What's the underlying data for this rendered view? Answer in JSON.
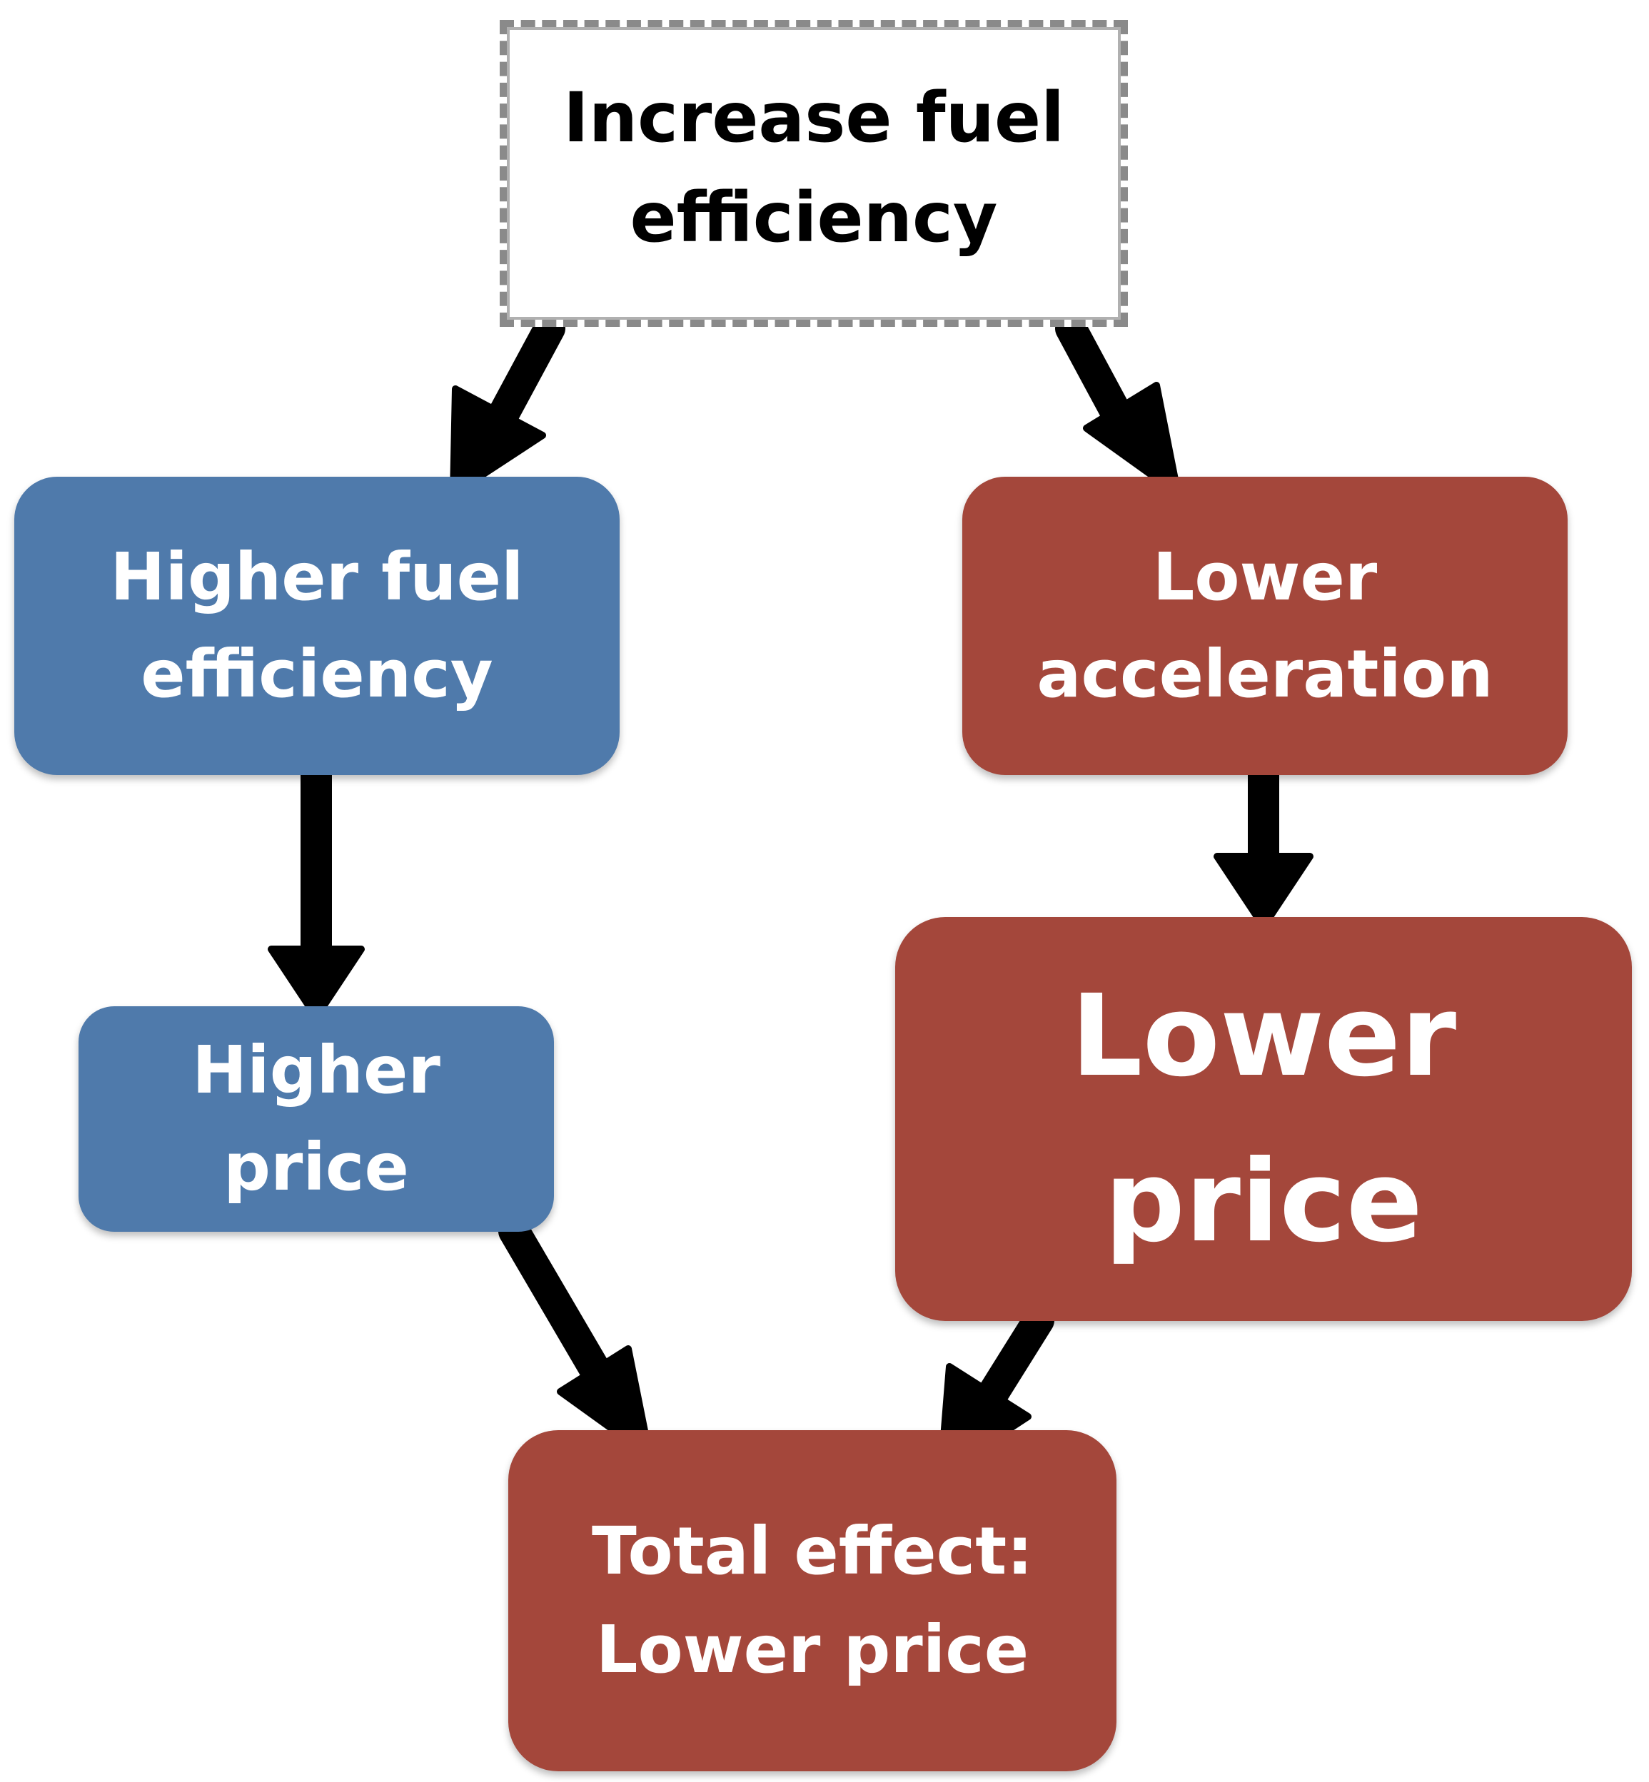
{
  "nodes": {
    "increase_fuel_efficiency": {
      "lines": [
        "Increase fuel",
        "efficiency"
      ]
    },
    "higher_fuel_efficiency": {
      "lines": [
        "Higher fuel",
        "efficiency"
      ]
    },
    "lower_acceleration": {
      "lines": [
        "Lower",
        "acceleration"
      ]
    },
    "higher_price": {
      "lines": [
        "Higher",
        "price"
      ]
    },
    "lower_price": {
      "lines": [
        "Lower",
        "price"
      ]
    },
    "total_effect": {
      "lines": [
        "Total effect:",
        "Lower price"
      ]
    }
  },
  "edges": [
    {
      "from": "Increase fuel efficiency",
      "to": "Higher fuel efficiency"
    },
    {
      "from": "Increase fuel efficiency",
      "to": "Lower acceleration"
    },
    {
      "from": "Higher fuel efficiency",
      "to": "Higher price"
    },
    {
      "from": "Lower acceleration",
      "to": "Lower price"
    },
    {
      "from": "Higher price",
      "to": "Total effect: Lower price"
    },
    {
      "from": "Lower price",
      "to": "Total effect: Lower price"
    }
  ],
  "colors": {
    "blue_box": "#4f7aab",
    "red_box": "#a4473b",
    "top_box_border": "#8a8a8a",
    "arrow": "#000000",
    "text_light": "#ffffff",
    "text_dark": "#000000"
  }
}
